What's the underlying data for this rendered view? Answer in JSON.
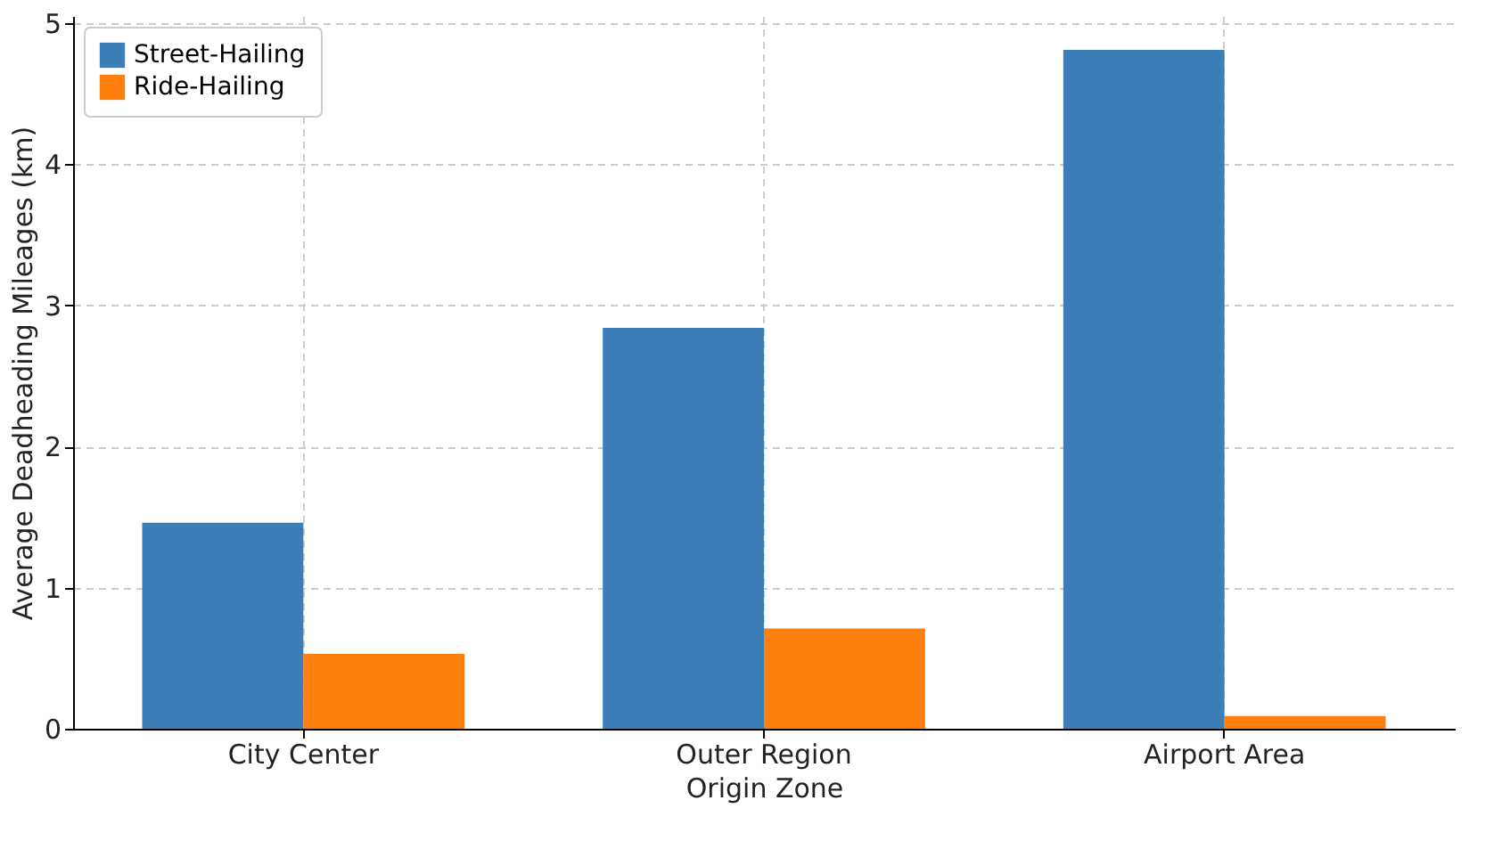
{
  "chart_data": {
    "type": "bar",
    "xlabel": "Origin Zone",
    "ylabel": "Average Deadheading Mileages (km)",
    "categories": [
      "City Center",
      "Outer Region",
      "Airport Area"
    ],
    "series": [
      {
        "name": "Street-Hailing",
        "color": "#3a7fb8",
        "values": [
          1.46,
          2.84,
          4.81
        ]
      },
      {
        "name": "Ride-Hailing",
        "color": "#ff7f0e",
        "values": [
          0.53,
          0.71,
          0.09
        ]
      }
    ],
    "ylim": [
      0,
      5.05
    ],
    "yticks": [
      0,
      1,
      2,
      3,
      4,
      5
    ],
    "grid": true,
    "legend": "top left"
  }
}
